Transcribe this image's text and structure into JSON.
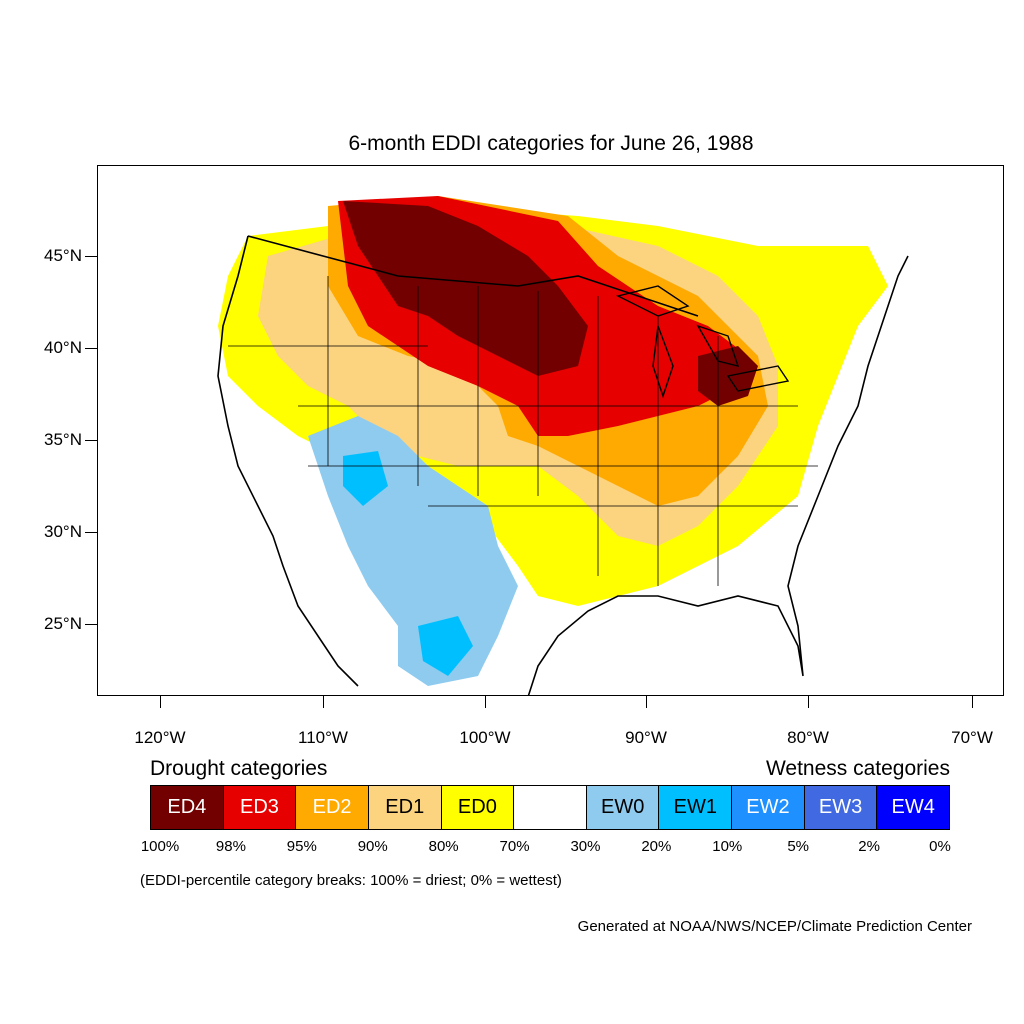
{
  "title": "6-month EDDI categories for June 26, 1988",
  "lat_labels": [
    "45°N",
    "40°N",
    "35°N",
    "30°N",
    "25°N"
  ],
  "lon_labels": [
    "120°W",
    "110°W",
    "100°W",
    "90°W",
    "80°W",
    "70°W"
  ],
  "legend": {
    "drought_heading": "Drought categories",
    "wetness_heading": "Wetness categories",
    "categories": [
      {
        "label": "ED4",
        "color": "#730000",
        "text_color": "#ffffff"
      },
      {
        "label": "ED3",
        "color": "#e60000",
        "text_color": "#ffffff"
      },
      {
        "label": "ED2",
        "color": "#ffaa00",
        "text_color": "#ffffff"
      },
      {
        "label": "ED1",
        "color": "#fcd37f",
        "text_color": "#000000"
      },
      {
        "label": "ED0",
        "color": "#ffff00",
        "text_color": "#000000"
      },
      {
        "label": "",
        "color": "#ffffff",
        "text_color": "#000000"
      },
      {
        "label": "EW0",
        "color": "#8ecbef",
        "text_color": "#000000"
      },
      {
        "label": "EW1",
        "color": "#00bfff",
        "text_color": "#000000"
      },
      {
        "label": "EW2",
        "color": "#1e90ff",
        "text_color": "#ffffff"
      },
      {
        "label": "EW3",
        "color": "#4169e1",
        "text_color": "#ffffff"
      },
      {
        "label": "EW4",
        "color": "#0000ff",
        "text_color": "#ffffff"
      }
    ],
    "breaks": [
      "100%",
      "98%",
      "95%",
      "90%",
      "80%",
      "70%",
      "30%",
      "20%",
      "10%",
      "5%",
      "2%",
      "0%"
    ]
  },
  "note": "(EDDI-percentile category breaks: 100% = driest; 0% = wettest)",
  "credit": "Generated at NOAA/NWS/NCEP/Climate Prediction Center"
}
